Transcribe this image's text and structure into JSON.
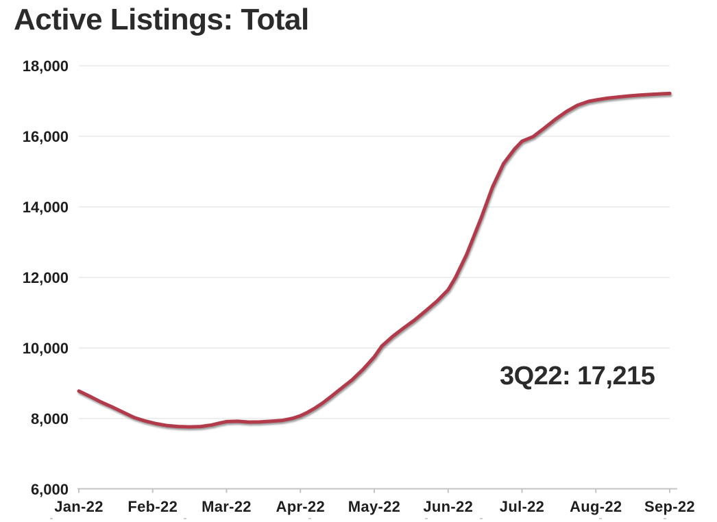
{
  "chart_data": {
    "type": "line",
    "title": "Active Listings: Total",
    "xlabel": "",
    "ylabel": "",
    "ylim": [
      6000,
      18000
    ],
    "xlim_months": [
      0,
      8
    ],
    "grid": "horizontal",
    "legend": "none",
    "colors": {
      "line": "#b23b4b",
      "gridline": "#e4e4e4",
      "axis": "#c3c3c3",
      "text": "#1e1e1e",
      "title_text": "#2b2b2b"
    },
    "y_ticks": [
      {
        "label": "6,000",
        "value": 6000
      },
      {
        "label": "8,000",
        "value": 8000
      },
      {
        "label": "10,000",
        "value": 10000
      },
      {
        "label": "12,000",
        "value": 12000
      },
      {
        "label": "14,000",
        "value": 14000
      },
      {
        "label": "16,000",
        "value": 16000
      },
      {
        "label": "18,000",
        "value": 18000
      }
    ],
    "x_ticks": [
      {
        "label": "Jan-22",
        "month": 0
      },
      {
        "label": "Feb-22",
        "month": 1
      },
      {
        "label": "Mar-22",
        "month": 2
      },
      {
        "label": "Apr-22",
        "month": 3
      },
      {
        "label": "May-22",
        "month": 4
      },
      {
        "label": "Jun-22",
        "month": 5
      },
      {
        "label": "Jul-22",
        "month": 6
      },
      {
        "label": "Aug-22",
        "month": 7
      },
      {
        "label": "Sep-22",
        "month": 8
      }
    ],
    "annotation": {
      "text": "3Q22: 17,215",
      "quarter": "3Q22",
      "value": 17215
    },
    "series": [
      {
        "name": "Active Listings: Total",
        "color": "#b23b4b",
        "points": [
          [
            0.0,
            8780
          ],
          [
            0.15,
            8630
          ],
          [
            0.3,
            8470
          ],
          [
            0.45,
            8330
          ],
          [
            0.6,
            8180
          ],
          [
            0.75,
            8030
          ],
          [
            0.9,
            7930
          ],
          [
            1.05,
            7855
          ],
          [
            1.2,
            7800
          ],
          [
            1.35,
            7775
          ],
          [
            1.5,
            7765
          ],
          [
            1.65,
            7775
          ],
          [
            1.8,
            7820
          ],
          [
            1.9,
            7870
          ],
          [
            2.0,
            7915
          ],
          [
            2.15,
            7925
          ],
          [
            2.3,
            7900
          ],
          [
            2.45,
            7905
          ],
          [
            2.6,
            7925
          ],
          [
            2.75,
            7945
          ],
          [
            2.9,
            8010
          ],
          [
            3.0,
            8080
          ],
          [
            3.1,
            8180
          ],
          [
            3.2,
            8300
          ],
          [
            3.3,
            8440
          ],
          [
            3.4,
            8600
          ],
          [
            3.55,
            8850
          ],
          [
            3.7,
            9100
          ],
          [
            3.85,
            9400
          ],
          [
            4.0,
            9750
          ],
          [
            4.1,
            10050
          ],
          [
            4.25,
            10330
          ],
          [
            4.4,
            10570
          ],
          [
            4.55,
            10800
          ],
          [
            4.7,
            11060
          ],
          [
            4.85,
            11330
          ],
          [
            5.0,
            11650
          ],
          [
            5.1,
            12000
          ],
          [
            5.25,
            12650
          ],
          [
            5.45,
            13700
          ],
          [
            5.6,
            14560
          ],
          [
            5.75,
            15230
          ],
          [
            5.9,
            15640
          ],
          [
            6.0,
            15860
          ],
          [
            6.15,
            15990
          ],
          [
            6.3,
            16230
          ],
          [
            6.45,
            16480
          ],
          [
            6.6,
            16700
          ],
          [
            6.75,
            16880
          ],
          [
            6.9,
            16990
          ],
          [
            7.0,
            17030
          ],
          [
            7.15,
            17080
          ],
          [
            7.3,
            17115
          ],
          [
            7.45,
            17145
          ],
          [
            7.6,
            17170
          ],
          [
            7.75,
            17190
          ],
          [
            7.9,
            17205
          ],
          [
            8.0,
            17215
          ]
        ]
      }
    ]
  }
}
